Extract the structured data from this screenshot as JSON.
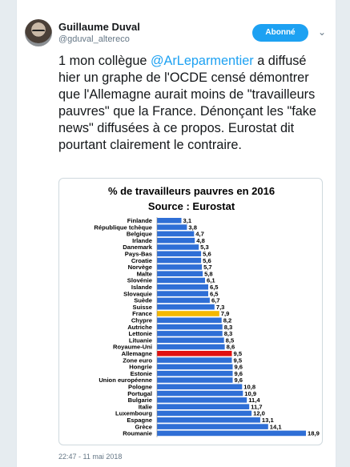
{
  "user": {
    "name": "Guillaume Duval",
    "handle": "@gduval_altereco",
    "follow_label": "Abonné",
    "caret": "⌄"
  },
  "tweet": {
    "text_before": "1 mon collègue ",
    "mention": "@ArLeparmentier",
    "text_after": " a diffusé hier un graphe de l'OCDE censé démontrer que l'Allemagne aurait moins de \"travailleurs pauvres\" que la France. Dénonçant les \"fake news\" diffusées à ce propos. Eurostat dit pourtant clairement le contraire.",
    "timestamp": "22:47 - 11 mai 2018"
  },
  "colors": {
    "accent": "#1da1f2",
    "bar_default": "#2f6fd6",
    "bar_france": "#f5b800",
    "bar_germany": "#e01010"
  },
  "chart_data": {
    "type": "bar",
    "orientation": "horizontal",
    "title": "% de travailleurs pauvres en 2016",
    "subtitle": "Source : Eurostat",
    "categories": [
      "Finlande",
      "République tchèque",
      "Belgique",
      "Irlande",
      "Danemark",
      "Pays-Bas",
      "Croatie",
      "Norvège",
      "Malte",
      "Slovénie",
      "Islande",
      "Slovaquie",
      "Suède",
      "Suisse",
      "France",
      "Chypre",
      "Autriche",
      "Lettonie",
      "Lituanie",
      "Royaume-Uni",
      "Allemagne",
      "Zone euro",
      "Hongrie",
      "Estonie",
      "Union européenne",
      "Pologne",
      "Portugal",
      "Bulgarie",
      "Italie",
      "Luxembourg",
      "Espagne",
      "Grèce",
      "Roumanie"
    ],
    "values": [
      3.1,
      3.8,
      4.7,
      4.8,
      5.3,
      5.6,
      5.6,
      5.7,
      5.8,
      6.1,
      6.5,
      6.5,
      6.7,
      7.3,
      7.9,
      8.2,
      8.3,
      8.3,
      8.5,
      8.6,
      9.5,
      9.5,
      9.6,
      9.6,
      9.6,
      10.8,
      10.9,
      11.4,
      11.7,
      12.0,
      13.1,
      14.1,
      18.9
    ],
    "value_labels": [
      "3,1",
      "3,8",
      "4,7",
      "4,8",
      "5,3",
      "5,6",
      "5,6",
      "5,7",
      "5,8",
      "6,1",
      "6,5",
      "6,5",
      "6,7",
      "7,3",
      "7,9",
      "8,2",
      "8,3",
      "8,3",
      "8,5",
      "8,6",
      "9,5",
      "9,5",
      "9,6",
      "9,6",
      "9,6",
      "10,8",
      "10,9",
      "11,4",
      "11,7",
      "12,0",
      "13,1",
      "14,1",
      "18,9"
    ],
    "highlights": {
      "France": "bar_france",
      "Allemagne": "bar_germany"
    },
    "xlim": [
      0,
      19
    ],
    "grid": false,
    "legend": "none"
  }
}
